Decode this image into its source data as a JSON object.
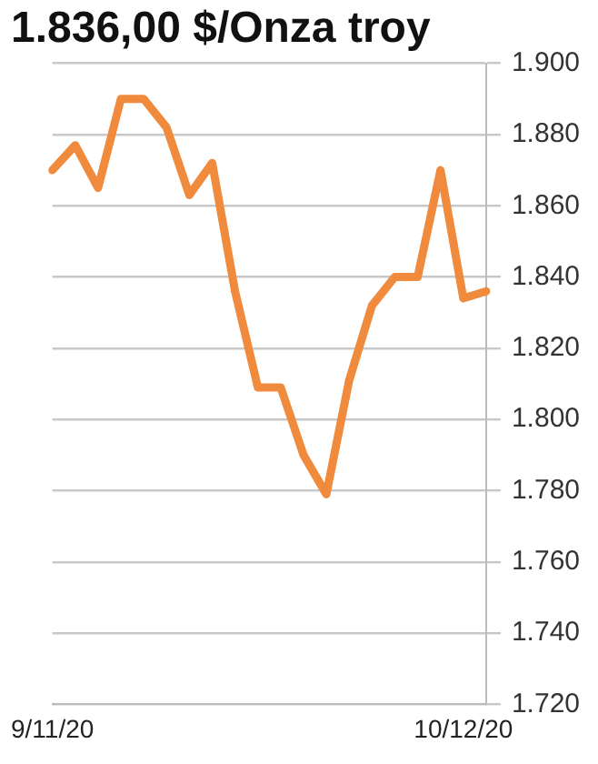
{
  "chart_data": {
    "type": "line",
    "title": "1.836,00 $/Onza troy",
    "categories": [
      "9/11/20",
      null,
      null,
      null,
      null,
      null,
      null,
      null,
      null,
      null,
      null,
      null,
      null,
      null,
      null,
      null,
      null,
      null,
      "10/12/20",
      null
    ],
    "series": [
      {
        "color": "#f08a3c",
        "values": [
          1870,
          1877,
          1865,
          1890,
          1890,
          1882,
          1863,
          1872,
          1836,
          1809,
          1809,
          1790,
          1779,
          1811,
          1832,
          1840,
          1840,
          1870,
          1834,
          1836
        ]
      }
    ],
    "ylim": [
      1720,
      1900
    ],
    "yticks": [
      {
        "value": 1720,
        "label": "1.720"
      },
      {
        "value": 1740,
        "label": "1.740"
      },
      {
        "value": 1760,
        "label": "1.760"
      },
      {
        "value": 1780,
        "label": "1.780"
      },
      {
        "value": 1800,
        "label": "1.800"
      },
      {
        "value": 1820,
        "label": "1.820"
      },
      {
        "value": 1840,
        "label": "1.840"
      },
      {
        "value": 1860,
        "label": "1.860"
      },
      {
        "value": 1880,
        "label": "1.880"
      },
      {
        "value": 1900,
        "label": "1.900"
      }
    ],
    "grid": "y",
    "legend": false,
    "marker": "none",
    "line_style": "solid"
  }
}
